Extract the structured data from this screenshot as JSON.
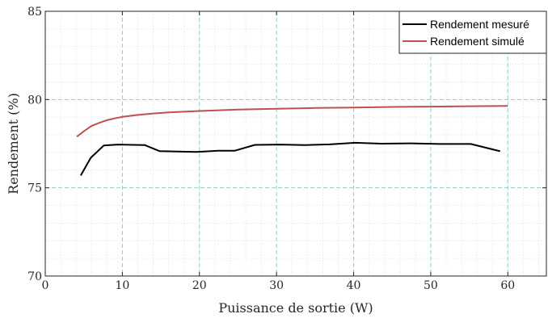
{
  "chart_data": {
    "type": "line",
    "title": "",
    "xlabel": "Puissance de sortie (W)",
    "ylabel": "Rendement (%)",
    "xlim": [
      0,
      65
    ],
    "ylim": [
      70,
      85
    ],
    "xticks": [
      0,
      10,
      20,
      30,
      40,
      50,
      60
    ],
    "yticks": [
      70,
      75,
      80,
      85
    ],
    "grid": true,
    "minor_grid": true,
    "legend_position": "top-right",
    "series": [
      {
        "name": "Rendement mesuré",
        "color": "#000000",
        "x": [
          4.6,
          5.9,
          7.6,
          9.4,
          12.9,
          14.8,
          19.6,
          22.4,
          24.6,
          27.2,
          30.5,
          33.7,
          36.9,
          40.2,
          43.6,
          47.4,
          51.1,
          55.2,
          59.0
        ],
        "y": [
          75.7,
          76.7,
          77.4,
          77.45,
          77.42,
          77.08,
          77.03,
          77.1,
          77.1,
          77.43,
          77.45,
          77.42,
          77.46,
          77.55,
          77.5,
          77.52,
          77.48,
          77.48,
          77.07
        ]
      },
      {
        "name": "Rendement simulé",
        "color": "#c0504d",
        "x": [
          4.1,
          5.0,
          6.0,
          7.0,
          8.0,
          9.0,
          10.0,
          12.0,
          14.0,
          16.0,
          18.0,
          20.0,
          25.0,
          30.0,
          35.0,
          40.0,
          45.0,
          50.0,
          55.0,
          60.0
        ],
        "y": [
          77.9,
          78.2,
          78.5,
          78.68,
          78.83,
          78.93,
          79.02,
          79.13,
          79.21,
          79.27,
          79.31,
          79.35,
          79.43,
          79.48,
          79.52,
          79.55,
          79.58,
          79.6,
          79.62,
          79.64
        ]
      }
    ]
  }
}
